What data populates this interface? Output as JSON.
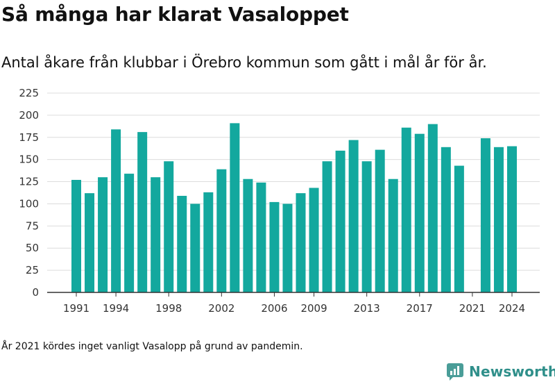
{
  "title": "Så många har klarat Vasaloppet",
  "subtitle": "Antal åkare från klubbar i Örebro kommun som gått i mål år för år.",
  "footnote": "År 2021 kördes inget vanligt Vasalopp på grund av pandemin.",
  "brand": {
    "name": "Newsworthy",
    "color": "#2f8f8a",
    "icon": "bar-chart-speech-bubble-icon"
  },
  "chart_data": {
    "type": "bar",
    "color": "#13a89e",
    "x": [
      1991,
      1992,
      1993,
      1994,
      1995,
      1996,
      1997,
      1998,
      1999,
      2000,
      2001,
      2002,
      2003,
      2004,
      2005,
      2006,
      2007,
      2008,
      2009,
      2010,
      2011,
      2012,
      2013,
      2014,
      2015,
      2016,
      2017,
      2018,
      2019,
      2020,
      2021,
      2022,
      2023,
      2024
    ],
    "values": [
      127,
      112,
      130,
      184,
      134,
      181,
      130,
      148,
      109,
      100,
      113,
      139,
      191,
      128,
      124,
      102,
      100,
      112,
      118,
      148,
      160,
      172,
      148,
      161,
      128,
      186,
      179,
      190,
      164,
      143,
      null,
      174,
      164,
      165
    ],
    "x_tick_labels": [
      "1991",
      "1994",
      "1998",
      "2002",
      "2006",
      "2009",
      "2013",
      "2017",
      "2021",
      "2024"
    ],
    "y_ticks": [
      0,
      25,
      50,
      75,
      100,
      125,
      150,
      175,
      200,
      225
    ],
    "ylim": [
      0,
      225
    ],
    "grid": true
  }
}
